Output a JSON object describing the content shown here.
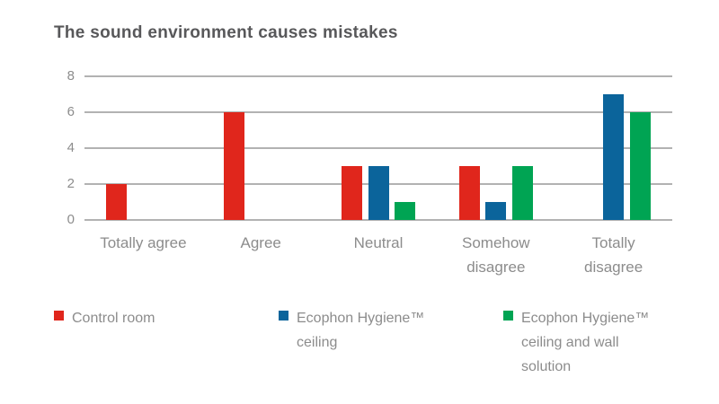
{
  "chart_data": {
    "type": "bar",
    "title": "The sound environment causes mistakes",
    "categories": [
      "Totally agree",
      "Agree",
      "Neutral",
      "Somehow disagree",
      "Totally disagree"
    ],
    "series": [
      {
        "name": "Control room",
        "color": "#e0261c",
        "values": [
          2,
          6,
          3,
          3,
          0
        ],
        "legend_lines": [
          "Control room"
        ]
      },
      {
        "name": "Ecophon Hygiene™ ceiling",
        "color": "#0b649b",
        "values": [
          0,
          0,
          3,
          1,
          7
        ],
        "legend_lines": [
          "Ecophon Hygiene™",
          "ceiling"
        ]
      },
      {
        "name": "Ecophon Hygiene™ ceiling and wall solution",
        "color": "#00a453",
        "values": [
          0,
          0,
          1,
          3,
          6
        ],
        "legend_lines": [
          "Ecophon Hygiene™",
          "ceiling and wall",
          "solution"
        ]
      }
    ],
    "xlabel": "",
    "ylabel": "",
    "ylim": [
      0,
      8
    ],
    "yticks": [
      0,
      2,
      4,
      6,
      8
    ],
    "grid": true,
    "legend_position": "bottom",
    "colors": {
      "title_text": "#58585a",
      "axis_text": "#8c8c8c",
      "gridline": "#b2b2b2",
      "background": "#ffffff"
    }
  }
}
